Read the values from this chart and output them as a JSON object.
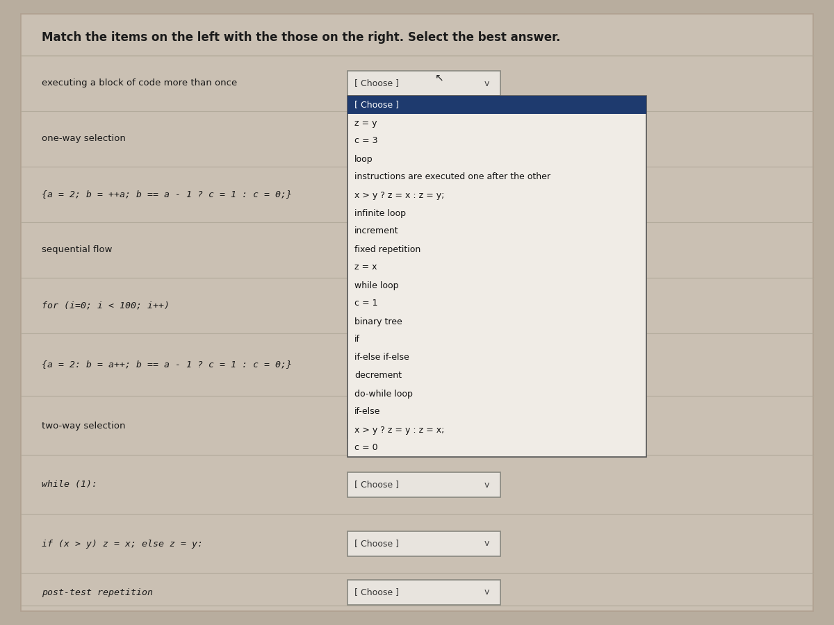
{
  "title": "Match the items on the left with the those on the right. Select the best answer.",
  "bg_color": "#cdc4b7",
  "outer_bg": "#b8ad9e",
  "card_color": "#cac0b3",
  "left_items": [
    "executing a block of code more than once",
    "one-way selection",
    "{a = 2; b = ++a; b == a - 1 ? c = 1 : c = 0;}",
    "sequential flow",
    "for (i=0; i < 100; i++)",
    "{a = 2: b = a++; b == a - 1 ? c = 1 : c = 0;}",
    "two-way selection",
    "while (1):",
    "if (x > y) z = x; else z = y:",
    "post-test repetition"
  ],
  "left_italic": [
    2,
    4,
    5,
    7,
    8,
    9
  ],
  "dropdown_label": "[ Choose ]",
  "dropdown_rows": [
    0,
    6,
    7,
    8,
    9
  ],
  "open_dropdown_row": 0,
  "dropdown_items": [
    "[ Choose ]",
    "z = y",
    "c = 3",
    "loop",
    "instructions are executed one after the other",
    "x > y ? z = x : z = y;",
    "infinite loop",
    "increment",
    "fixed repetition",
    "z = x",
    "while loop",
    "c = 1",
    "binary tree",
    "if",
    "if-else if-else",
    "decrement",
    "do-while loop",
    "if-else",
    "x > y ? z = y : z = x;",
    "c = 0"
  ],
  "divider_color": "#b0a898",
  "text_color": "#1a1a1a",
  "dropdown_bg": "#e8e4de",
  "dropdown_border": "#888880",
  "dropdown_open_bg": "#1e3a6e",
  "dropdown_open_text": "#ffffff",
  "dropdown_list_bg": "#f0ece6",
  "dropdown_list_border": "#555555",
  "dropdown_item_text": "#111111",
  "chevron": "v"
}
